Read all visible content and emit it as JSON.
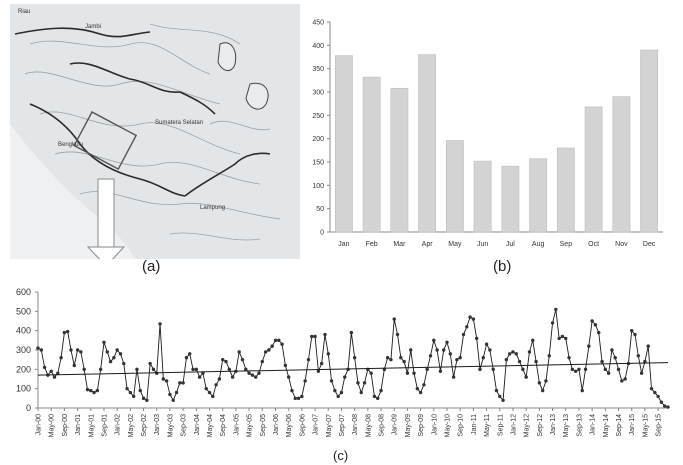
{
  "panel_labels": {
    "a": "(a)",
    "b": "(b)",
    "c": "(c)"
  },
  "map": {
    "labels": [
      "Riau",
      "Jambi",
      "Sumatera Selatan",
      "Bengkulu",
      "Lampung"
    ],
    "colors": {
      "background": "#dfe3e6",
      "land": "#e9ebec",
      "contour": "#9aa2a8",
      "border": "#2a2a2a"
    }
  },
  "colors": {
    "bar_fill": "#d3d3d3",
    "bar_stroke": "#bdbdbd",
    "line": "#1a1a1a",
    "marker": "#333333",
    "axis": "#888888"
  },
  "chart_data": [
    {
      "type": "bar",
      "categories": [
        "Jan",
        "Feb",
        "Mar",
        "Apr",
        "May",
        "Jun",
        "Jul",
        "Aug",
        "Sep",
        "Oct",
        "Nov",
        "Dec"
      ],
      "values": [
        378,
        332,
        308,
        380,
        196,
        152,
        141,
        157,
        180,
        268,
        290,
        390
      ],
      "title": "",
      "xlabel": "",
      "ylabel": "",
      "ylim": [
        0,
        450
      ],
      "yticks": [
        0,
        50,
        100,
        150,
        200,
        250,
        300,
        350,
        400,
        450
      ],
      "grid": false
    },
    {
      "type": "line",
      "title": "",
      "xlabel": "",
      "ylabel": "",
      "ylim": [
        0,
        600
      ],
      "yticks": [
        0,
        100,
        200,
        300,
        400,
        500,
        600
      ],
      "xtick_labels": [
        "Jan-00",
        "May-00",
        "Sep-00",
        "Jan-01",
        "May-01",
        "Sep-01",
        "Jan-02",
        "May-02",
        "Sep-02",
        "Jan-03",
        "May-03",
        "Sep-03",
        "Jan-04",
        "May-04",
        "Sep-04",
        "Jan-05",
        "May-05",
        "Sep-05",
        "Jan-06",
        "May-06",
        "Sep-06",
        "Jan-07",
        "May-07",
        "Sep-07",
        "Jan-08",
        "May-08",
        "Sep-08",
        "Jan-09",
        "May-09",
        "Sep-09",
        "Jan-10",
        "May-10",
        "Sep-10",
        "Jan-11",
        "May-11",
        "Sep-11",
        "Jan-12",
        "May-12",
        "Sep-12",
        "Jan-13",
        "May-13",
        "Sep-13",
        "Jan-14",
        "May-14",
        "Sep-14",
        "Jan-15",
        "May-15",
        "Sep-15"
      ],
      "monthly_values": [
        310,
        300,
        210,
        170,
        190,
        160,
        180,
        260,
        390,
        395,
        300,
        220,
        300,
        290,
        200,
        95,
        90,
        80,
        90,
        200,
        340,
        290,
        240,
        260,
        300,
        280,
        230,
        100,
        80,
        60,
        200,
        90,
        50,
        40,
        230,
        200,
        180,
        435,
        150,
        140,
        70,
        40,
        80,
        130,
        130,
        260,
        280,
        200,
        200,
        160,
        180,
        100,
        80,
        60,
        120,
        150,
        250,
        240,
        200,
        160,
        190,
        290,
        250,
        200,
        180,
        170,
        160,
        180,
        240,
        290,
        300,
        320,
        350,
        350,
        330,
        220,
        160,
        90,
        50,
        50,
        60,
        140,
        250,
        370,
        370,
        190,
        230,
        380,
        280,
        140,
        90,
        60,
        80,
        160,
        200,
        390,
        260,
        130,
        80,
        130,
        200,
        180,
        60,
        50,
        90,
        200,
        260,
        250,
        460,
        380,
        260,
        240,
        180,
        300,
        180,
        100,
        80,
        120,
        200,
        270,
        350,
        300,
        190,
        300,
        340,
        280,
        160,
        250,
        260,
        380,
        420,
        470,
        460,
        360,
        200,
        260,
        330,
        300,
        200,
        90,
        60,
        40,
        250,
        280,
        290,
        280,
        240,
        200,
        160,
        290,
        350,
        240,
        130,
        90,
        140,
        270,
        440,
        510,
        360,
        370,
        360,
        260,
        200,
        190,
        200,
        90,
        200,
        320,
        450,
        430,
        390,
        240,
        200,
        180,
        300,
        260,
        200,
        140,
        150,
        230,
        400,
        380,
        270,
        180,
        240,
        320,
        100,
        80,
        60,
        30,
        10,
        5
      ],
      "trend": {
        "start": 170,
        "end": 235
      },
      "grid": false
    }
  ]
}
